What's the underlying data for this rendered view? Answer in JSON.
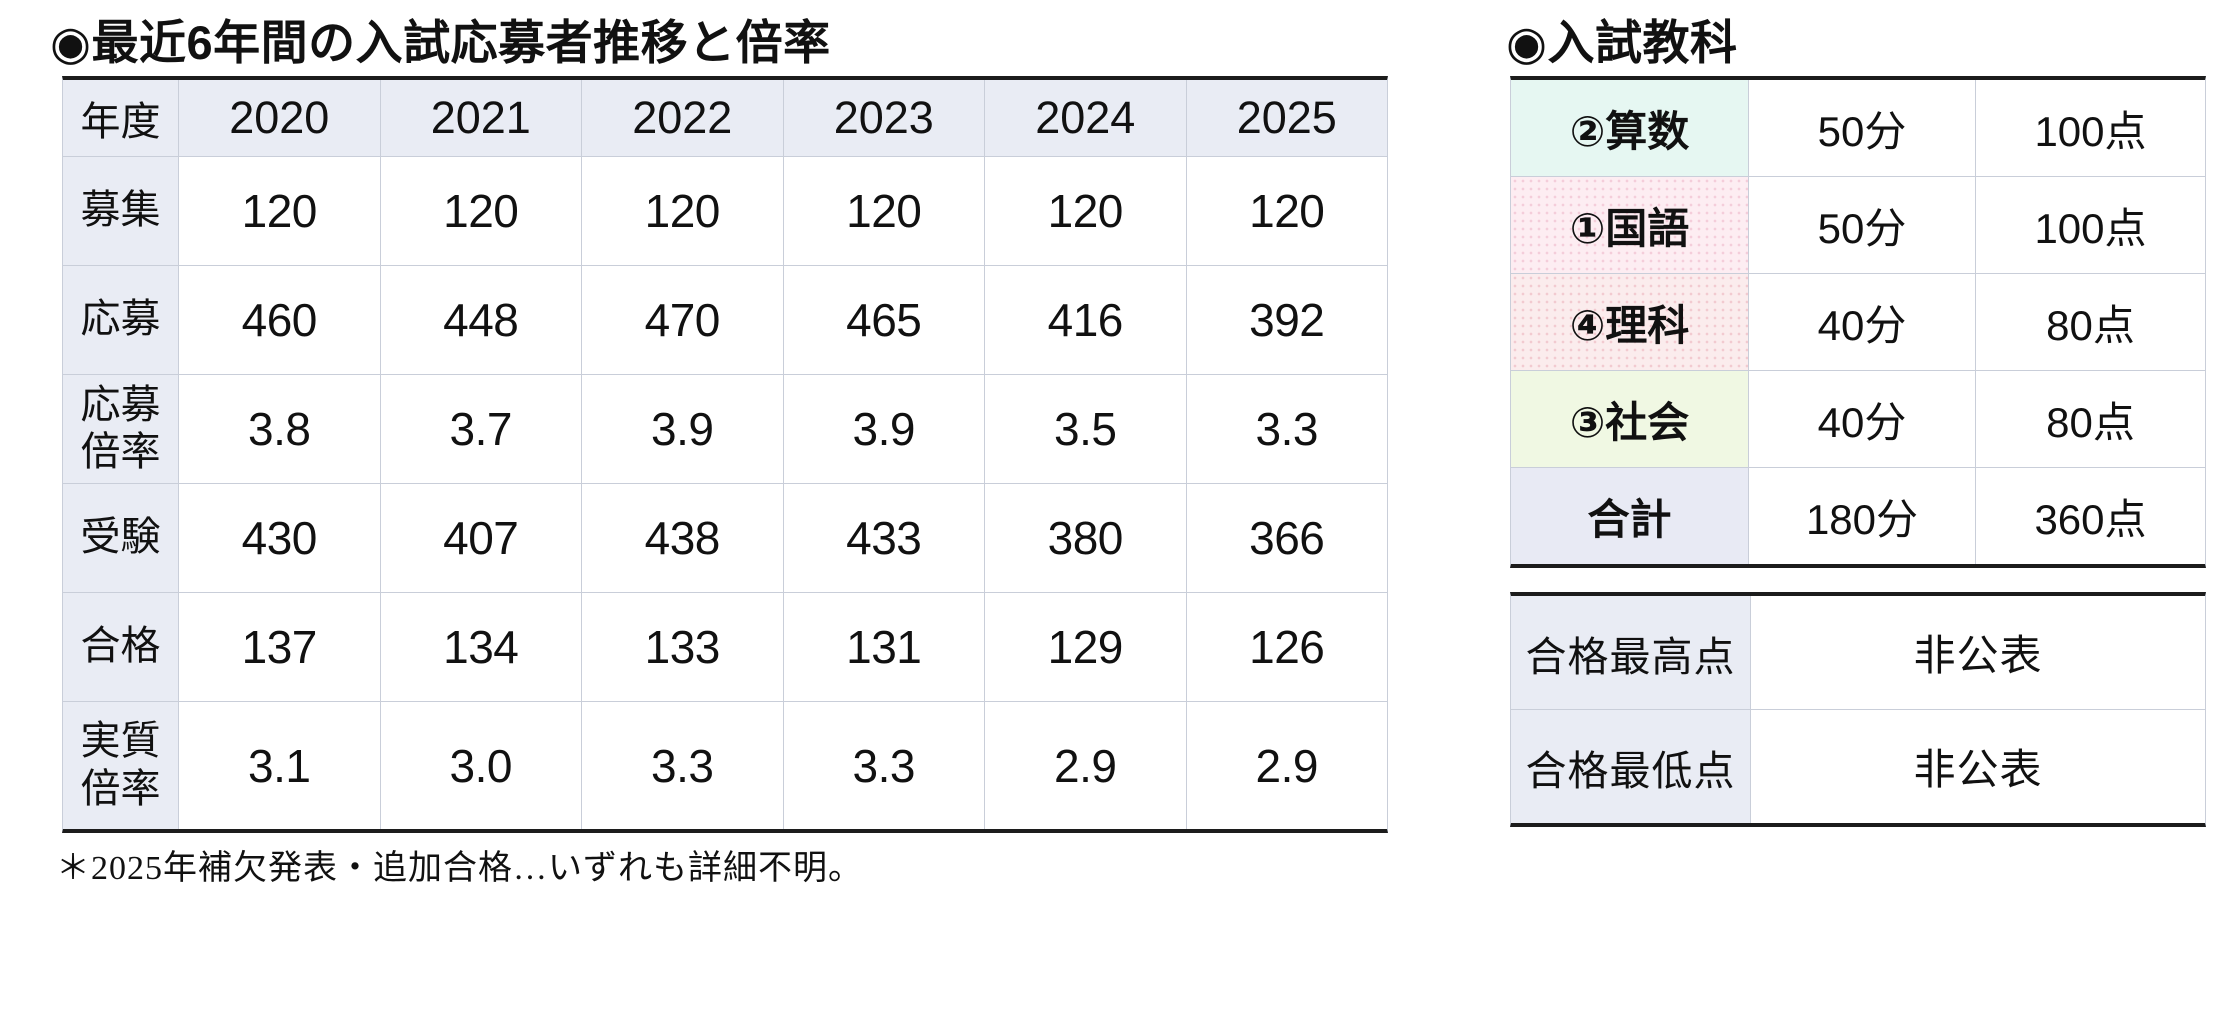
{
  "colors": {
    "ink": "#111111",
    "table_border": "#1c1c1c",
    "grid_line": "#c9ced9",
    "header_bg": "#e9ecf4",
    "score_label_bg": "#e9ecf4"
  },
  "left_section": {
    "title": "◉最近6年間の入試応募者推移と倍率",
    "table": {
      "header": [
        "年度",
        "2020",
        "2021",
        "2022",
        "2023",
        "2024",
        "2025"
      ],
      "rows": [
        {
          "label": "募集",
          "values": [
            "120",
            "120",
            "120",
            "120",
            "120",
            "120"
          ]
        },
        {
          "label": "応募",
          "values": [
            "460",
            "448",
            "470",
            "465",
            "416",
            "392"
          ]
        },
        {
          "label": "応募\n倍率",
          "values": [
            "3.8",
            "3.7",
            "3.9",
            "3.9",
            "3.5",
            "3.3"
          ]
        },
        {
          "label": "受験",
          "values": [
            "430",
            "407",
            "438",
            "433",
            "380",
            "366"
          ]
        },
        {
          "label": "合格",
          "values": [
            "137",
            "134",
            "133",
            "131",
            "129",
            "126"
          ]
        },
        {
          "label": "実質\n倍率",
          "values": [
            "3.1",
            "3.0",
            "3.3",
            "3.3",
            "2.9",
            "2.9"
          ]
        }
      ]
    },
    "footnote": "＊2025年補欠発表・追加合格…いずれも詳細不明。"
  },
  "right_section": {
    "title": "◉入試教科",
    "subjects_table": {
      "rows": [
        {
          "label": "②算数",
          "time": "50分",
          "points": "100点",
          "bg": "#e6f7f2"
        },
        {
          "label": "①国語",
          "time": "50分",
          "points": "100点",
          "bg": "#fdedf2",
          "dot": "#f4cdda"
        },
        {
          "label": "④理科",
          "time": "40分",
          "points": "80点",
          "bg": "#fbeced",
          "dot": "#f2cad0"
        },
        {
          "label": "③社会",
          "time": "40分",
          "points": "80点",
          "bg": "#f0f8e3"
        },
        {
          "label": "合計",
          "time": "180分",
          "points": "360点",
          "bg": "#e8eaf4"
        }
      ]
    },
    "scores_table": {
      "rows": [
        {
          "label": "合格最高点",
          "value": "非公表"
        },
        {
          "label": "合格最低点",
          "value": "非公表"
        }
      ]
    }
  }
}
